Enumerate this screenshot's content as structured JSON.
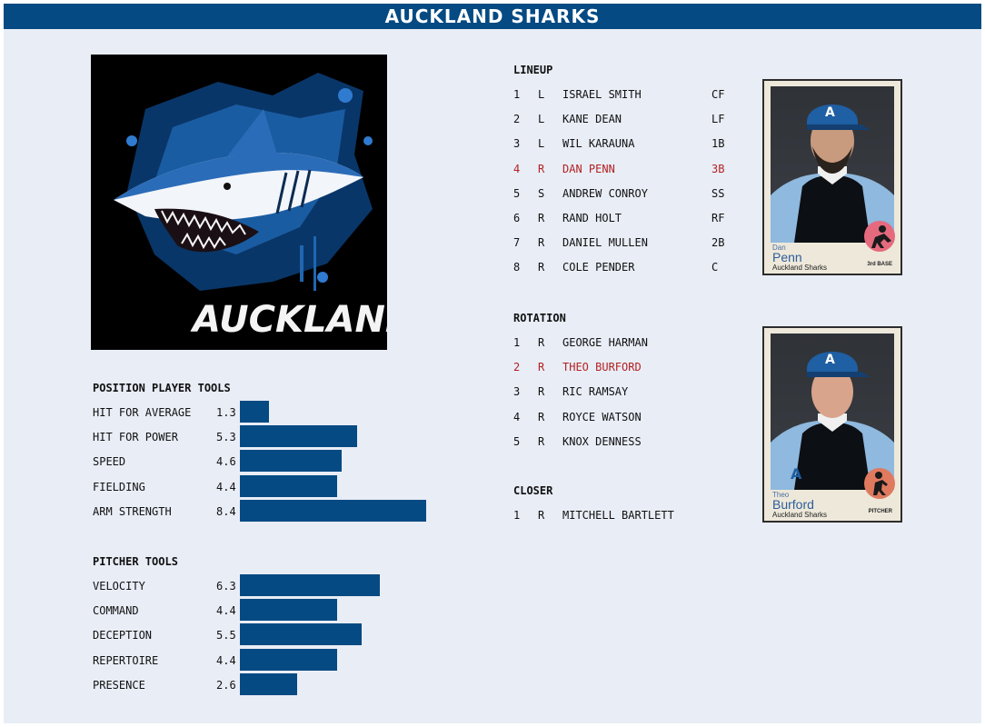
{
  "header": {
    "title": "AUCKLAND SHARKS"
  },
  "logo": {
    "text": "AUCKLAND",
    "icon": "shark-logo"
  },
  "position_tools": {
    "heading": "POSITION PLAYER TOOLS",
    "items": [
      {
        "label": "HIT FOR AVERAGE",
        "value": "1.3",
        "score": 1.3
      },
      {
        "label": "HIT FOR POWER",
        "value": "5.3",
        "score": 5.3
      },
      {
        "label": "SPEED",
        "value": "4.6",
        "score": 4.6
      },
      {
        "label": "FIELDING",
        "value": "4.4",
        "score": 4.4
      },
      {
        "label": "ARM STRENGTH",
        "value": "8.4",
        "score": 8.4
      }
    ]
  },
  "pitcher_tools": {
    "heading": "PITCHER TOOLS",
    "items": [
      {
        "label": "VELOCITY",
        "value": "6.3",
        "score": 6.3
      },
      {
        "label": "COMMAND",
        "value": "4.4",
        "score": 4.4
      },
      {
        "label": "DECEPTION",
        "value": "5.5",
        "score": 5.5
      },
      {
        "label": "REPERTOIRE",
        "value": "4.4",
        "score": 4.4
      },
      {
        "label": "PRESENCE",
        "value": "2.6",
        "score": 2.6
      }
    ]
  },
  "lineup": {
    "heading": "LINEUP",
    "rows": [
      {
        "num": "1",
        "hand": "L",
        "name": "ISRAEL SMITH",
        "pos": "CF",
        "highlight": false
      },
      {
        "num": "2",
        "hand": "L",
        "name": "KANE DEAN",
        "pos": "LF",
        "highlight": false
      },
      {
        "num": "3",
        "hand": "L",
        "name": "WIL KARAUNA",
        "pos": "1B",
        "highlight": false
      },
      {
        "num": "4",
        "hand": "R",
        "name": "DAN PENN",
        "pos": "3B",
        "highlight": true
      },
      {
        "num": "5",
        "hand": "S",
        "name": "ANDREW CONROY",
        "pos": "SS",
        "highlight": false
      },
      {
        "num": "6",
        "hand": "R",
        "name": "RAND HOLT",
        "pos": "RF",
        "highlight": false
      },
      {
        "num": "7",
        "hand": "R",
        "name": "DANIEL MULLEN",
        "pos": "2B",
        "highlight": false
      },
      {
        "num": "8",
        "hand": "R",
        "name": "COLE PENDER",
        "pos": "C",
        "highlight": false
      }
    ]
  },
  "rotation": {
    "heading": "ROTATION",
    "rows": [
      {
        "num": "1",
        "hand": "R",
        "name": "GEORGE HARMAN",
        "highlight": false
      },
      {
        "num": "2",
        "hand": "R",
        "name": "THEO BURFORD",
        "highlight": true
      },
      {
        "num": "3",
        "hand": "R",
        "name": "RIC RAMSAY",
        "highlight": false
      },
      {
        "num": "4",
        "hand": "R",
        "name": "ROYCE WATSON",
        "highlight": false
      },
      {
        "num": "5",
        "hand": "R",
        "name": "KNOX DENNESS",
        "highlight": false
      }
    ]
  },
  "closer": {
    "heading": "CLOSER",
    "rows": [
      {
        "num": "1",
        "hand": "R",
        "name": "MITCHELL BARTLETT"
      }
    ]
  },
  "cards": [
    {
      "first": "Dan",
      "last": "Penn",
      "team": "Auckland Sharks",
      "position": "3rd BASE",
      "icon": "fielder-icon",
      "badge_color": "#e56a7e"
    },
    {
      "first": "Theo",
      "last": "Burford",
      "team": "Auckland Sharks",
      "position": "PITCHER",
      "icon": "pitcher-icon",
      "badge_color": "#e07a5f"
    }
  ],
  "colors": {
    "bar": "#054a82",
    "highlight": "#b22222",
    "background": "#e9edf6"
  }
}
